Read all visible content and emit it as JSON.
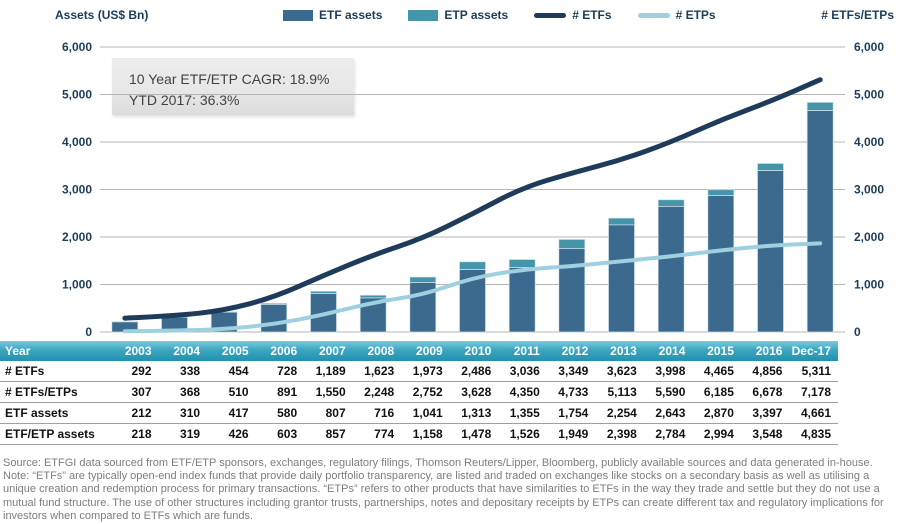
{
  "header": {
    "left_axis_title": "Assets (US$ Bn)",
    "right_axis_title": "# ETFs/ETPs",
    "legend": [
      {
        "label": "ETF assets",
        "type": "bar",
        "color": "#3c6a8f"
      },
      {
        "label": "ETP assets",
        "type": "bar",
        "color": "#4495aa"
      },
      {
        "label": "# ETFs",
        "type": "line",
        "color": "#1e3c5a"
      },
      {
        "label": "# ETPs",
        "type": "line",
        "color": "#9fd0e0"
      }
    ]
  },
  "annotation": {
    "line1": "10 Year ETF/ETP CAGR: 18.9%",
    "line2": "YTD 2017: 36.3%"
  },
  "chart_data": {
    "type": "bar+line combo (stacked bars on left axis, lines on right axis)",
    "categories": [
      "2003",
      "2004",
      "2005",
      "2006",
      "2007",
      "2008",
      "2009",
      "2010",
      "2011",
      "2012",
      "2013",
      "2014",
      "2015",
      "2016",
      "Dec-17"
    ],
    "series": [
      {
        "name": "ETF assets",
        "render": "bar-stack-bottom",
        "axis": "left",
        "color": "#3c6a8f",
        "values": [
          212,
          310,
          417,
          580,
          807,
          716,
          1041,
          1313,
          1355,
          1754,
          2254,
          2643,
          2870,
          3397,
          4661
        ]
      },
      {
        "name": "ETP assets",
        "render": "bar-stack-top",
        "axis": "left",
        "color": "#4495aa",
        "values": [
          6,
          9,
          9,
          23,
          50,
          58,
          117,
          165,
          171,
          195,
          144,
          141,
          124,
          151,
          174
        ]
      },
      {
        "name": "# ETFs",
        "render": "line",
        "axis": "right",
        "color": "#1e3c5a",
        "values": [
          292,
          338,
          454,
          728,
          1189,
          1623,
          1973,
          2486,
          3036,
          3349,
          3623,
          3998,
          4465,
          4856,
          5311
        ]
      },
      {
        "name": "# ETPs",
        "render": "line",
        "axis": "right",
        "color": "#9fd0e0",
        "values": [
          15,
          30,
          56,
          163,
          361,
          625,
          779,
          1142,
          1314,
          1384,
          1490,
          1592,
          1720,
          1822,
          1867
        ]
      }
    ],
    "title": "",
    "xlabel": "",
    "ylabel_left": "Assets (US$ Bn)",
    "ylabel_right": "# ETFs/ETPs",
    "ylim": [
      0,
      6000
    ],
    "yticks": [
      0,
      1000,
      2000,
      3000,
      4000,
      5000,
      6000
    ],
    "grid": "horizontal",
    "legend_position": "top-center",
    "gridline_color": "#b5b5b5",
    "axis_text_color": "#1d3c57"
  },
  "table": {
    "header": [
      "Year",
      "2003",
      "2004",
      "2005",
      "2006",
      "2007",
      "2008",
      "2009",
      "2010",
      "2011",
      "2012",
      "2013",
      "2014",
      "2015",
      "2016",
      "Dec-17"
    ],
    "rows": [
      {
        "label": "# ETFs",
        "values": [
          "292",
          "338",
          "454",
          "728",
          "1,189",
          "1,623",
          "1,973",
          "2,486",
          "3,036",
          "3,349",
          "3,623",
          "3,998",
          "4,465",
          "4,856",
          "5,311"
        ]
      },
      {
        "label": "# ETFs/ETPs",
        "values": [
          "307",
          "368",
          "510",
          "891",
          "1,550",
          "2,248",
          "2,752",
          "3,628",
          "4,350",
          "4,733",
          "5,113",
          "5,590",
          "6,185",
          "6,678",
          "7,178"
        ]
      },
      {
        "label": "ETF assets",
        "values": [
          "212",
          "310",
          "417",
          "580",
          "807",
          "716",
          "1,041",
          "1,313",
          "1,355",
          "1,754",
          "2,254",
          "2,643",
          "2,870",
          "3,397",
          "4,661"
        ]
      },
      {
        "label": "ETF/ETP assets",
        "values": [
          "218",
          "319",
          "426",
          "603",
          "857",
          "774",
          "1,158",
          "1,478",
          "1,526",
          "1,949",
          "2,398",
          "2,784",
          "2,994",
          "3,548",
          "4,835"
        ]
      }
    ]
  },
  "footer": {
    "source": "Source: ETFGI data sourced from ETF/ETP sponsors, exchanges, regulatory filings, Thomson Reuters/Lipper, Bloomberg, publicly available sources and data generated in-house.",
    "note": "Note: “ETFs” are typically open-end index funds that provide daily portfolio transparency, are listed and traded on exchanges like stocks on a secondary basis as well as utilising a unique creation and redemption process for primary transactions. “ETPs” refers to other products that have similarities to ETFs in the way they trade and settle but they do not use a mutual fund structure. The use of other structures including grantor trusts, partnerships, notes and depositary receipts by ETPs can create different tax and regulatory implications for investors when compared to ETFs which are funds."
  }
}
